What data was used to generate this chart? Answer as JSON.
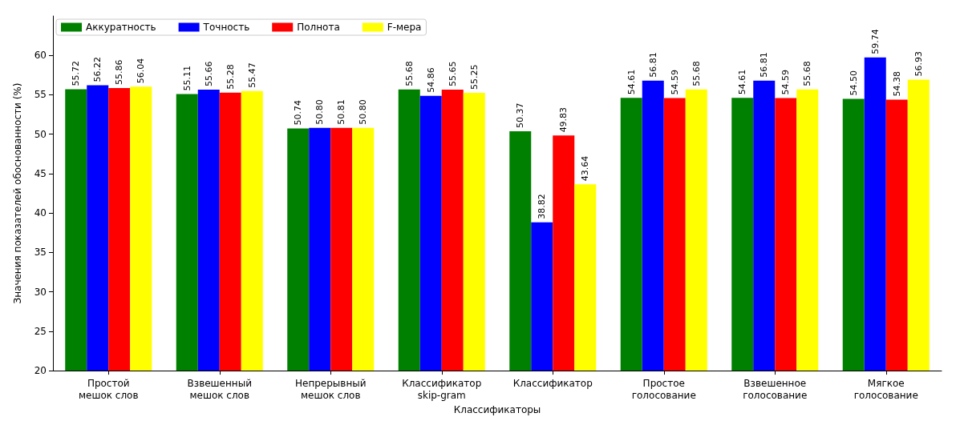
{
  "chart_data": {
    "type": "bar",
    "xlabel": "Классификаторы",
    "ylabel": "Значения показателей обоснованности (%)",
    "categories": [
      "Простой\nмешок слов",
      "Взвешенный\nмешок слов",
      "Непрерывный\nмешок слов",
      "Классификатор\nskip-gram",
      "Классификатор",
      "Простое\nголосование",
      "Взвешенное\nголосование",
      "Мягкое\nголосование"
    ],
    "series": [
      {
        "name": "Аккуратность",
        "color": "#008000",
        "values": [
          55.72,
          55.11,
          50.74,
          55.68,
          50.37,
          54.61,
          54.61,
          54.5
        ],
        "value_labels": [
          "55.72",
          "55.11",
          "50.74",
          "55.68",
          "50.37",
          "54.61",
          "54.61",
          "54.50"
        ]
      },
      {
        "name": "Точность",
        "color": "#0000ff",
        "values": [
          56.22,
          55.66,
          50.8,
          54.86,
          38.82,
          56.81,
          56.81,
          59.74
        ],
        "value_labels": [
          "56.22",
          "55.66",
          "50.80",
          "54.86",
          "38.82",
          "56.81",
          "56.81",
          "59.74"
        ]
      },
      {
        "name": "Полнота",
        "color": "#ff0000",
        "values": [
          55.86,
          55.28,
          50.81,
          55.65,
          49.83,
          54.59,
          54.59,
          54.38
        ],
        "value_labels": [
          "55.86",
          "55.28",
          "50.81",
          "55.65",
          "49.83",
          "54.59",
          "54.59",
          "54.38"
        ]
      },
      {
        "name": "F-мера",
        "color": "#ffff00",
        "values": [
          56.04,
          55.47,
          50.8,
          55.25,
          43.64,
          55.68,
          55.68,
          56.93
        ],
        "value_labels": [
          "56.04",
          "55.47",
          "50.80",
          "55.25",
          "43.64",
          "55.68",
          "55.68",
          "56.93"
        ]
      }
    ],
    "ylim": [
      20,
      65
    ],
    "yticks": [
      20,
      25,
      30,
      35,
      40,
      45,
      50,
      55,
      60
    ],
    "legend": "top left",
    "grid": false
  }
}
